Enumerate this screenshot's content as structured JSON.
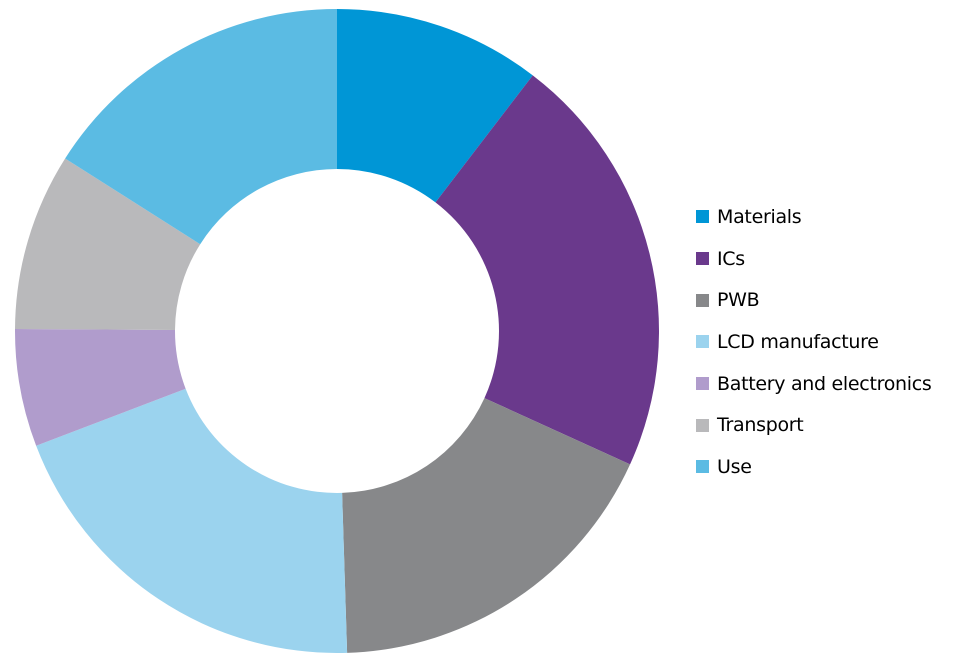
{
  "chart_data": {
    "type": "pie",
    "donut": true,
    "title": "",
    "legend_position": "right",
    "slices": [
      {
        "label": "Materials",
        "value": 10.4,
        "color": "#0096d6"
      },
      {
        "label": "ICs",
        "value": 21.4,
        "color": "#6a398c"
      },
      {
        "label": "PWB",
        "value": 17.7,
        "color": "#87888a"
      },
      {
        "label": "LCD manufacture",
        "value": 19.7,
        "color": "#9bd3ee"
      },
      {
        "label": "Battery and electronics",
        "value": 5.9,
        "color": "#b09ccc"
      },
      {
        "label": "Transport",
        "value": 8.9,
        "color": "#b9b9bb"
      },
      {
        "label": "Use",
        "value": 16.0,
        "color": "#5bbbe3"
      }
    ]
  }
}
